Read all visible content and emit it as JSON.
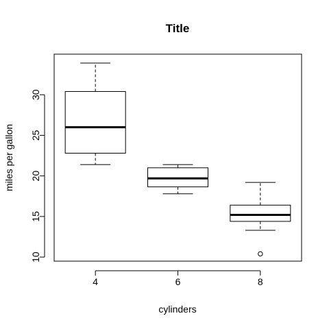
{
  "chart_data": {
    "type": "boxplot",
    "title": "Title",
    "xlabel": "cylinders",
    "ylabel": "miles per gallon",
    "ylim": [
      9.5,
      35
    ],
    "yticks": [
      10,
      15,
      20,
      25,
      30
    ],
    "categories": [
      "4",
      "6",
      "8"
    ],
    "boxes": [
      {
        "category": "4",
        "whisker_low": 21.4,
        "q1": 22.8,
        "median": 26.0,
        "q3": 30.4,
        "whisker_high": 33.9,
        "outliers": []
      },
      {
        "category": "6",
        "whisker_low": 17.8,
        "q1": 18.65,
        "median": 19.7,
        "q3": 21.0,
        "whisker_high": 21.4,
        "outliers": []
      },
      {
        "category": "8",
        "whisker_low": 13.3,
        "q1": 14.4,
        "median": 15.2,
        "q3": 16.4,
        "whisker_high": 19.2,
        "outliers": [
          10.4
        ]
      }
    ],
    "grid": false,
    "legend": "none"
  }
}
